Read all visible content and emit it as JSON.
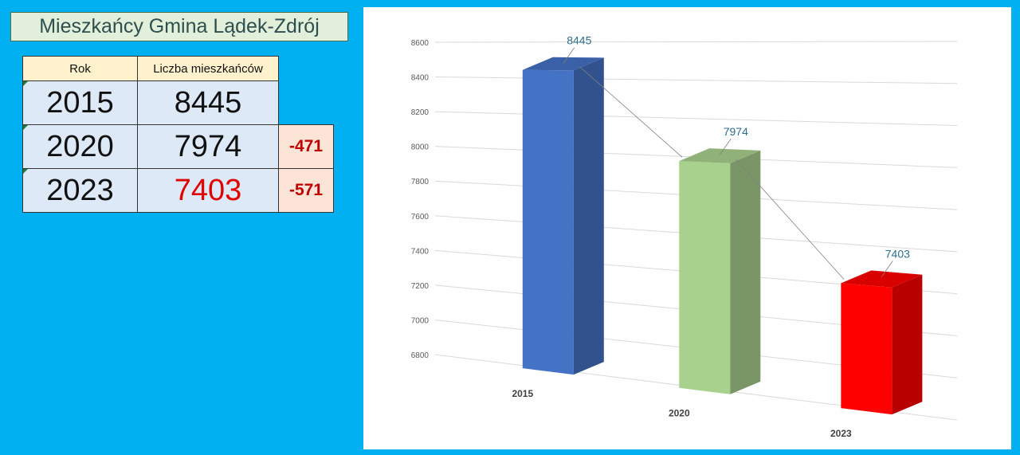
{
  "title": "Mieszkańcy Gmina Lądek-Zdrój",
  "table": {
    "headers": [
      "Rok",
      "Liczba mieszkańców"
    ],
    "rows": [
      {
        "year": "2015",
        "count": "8445",
        "diff": ""
      },
      {
        "year": "2020",
        "count": "7974",
        "diff": "-471"
      },
      {
        "year": "2023",
        "count": "7403",
        "diff": "-571"
      }
    ]
  },
  "chart_data": {
    "type": "bar",
    "categories": [
      "2015",
      "2020",
      "2023"
    ],
    "values": [
      8445,
      7974,
      7403
    ],
    "data_labels": [
      "8445",
      "7974",
      "7403"
    ],
    "bar_colors": [
      "#4472c4",
      "#a9d18e",
      "#ff0000"
    ],
    "ylim": [
      6800,
      8600
    ],
    "y_ticks": [
      "6800",
      "7000",
      "7200",
      "7400",
      "7600",
      "7800",
      "8000",
      "8200",
      "8400",
      "8600"
    ],
    "grid": true,
    "style": "3d-column"
  }
}
